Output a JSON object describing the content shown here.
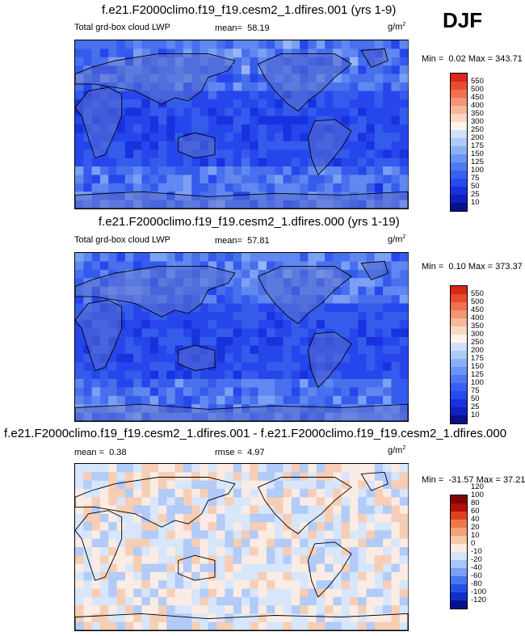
{
  "season": "DJF",
  "colors": {
    "abs_scale": [
      "#08108c",
      "#1020c0",
      "#1830e0",
      "#2848f0",
      "#3860f0",
      "#5078f0",
      "#6c94f4",
      "#8cb0f8",
      "#aecaf8",
      "#d0e0fa",
      "#fff4ec",
      "#fcd8c4",
      "#f8b89c",
      "#f49474",
      "#f07050",
      "#e84c30",
      "#d82818",
      "#b80c08",
      "#8c0404"
    ],
    "diff_scale": [
      "#08108c",
      "#1030c8",
      "#2850e8",
      "#4878f0",
      "#78a0f4",
      "#a8c4f8",
      "#d4e4fa",
      "#fdebdf",
      "#f8c8a8",
      "#f4a078",
      "#f07848",
      "#e04020",
      "#b01008",
      "#800404"
    ],
    "land": "#5a6dd0",
    "diff_bg": "#e8eefc"
  },
  "chart_data": [
    {
      "type": "heatmap",
      "title": "f.e21.F2000climo.f19_f19.cesm2_1.dfires.001 (yrs 1-9)",
      "variable": "Total grd-box cloud LWP",
      "mean_label": "mean=",
      "mean": "58.19",
      "units": "g/m",
      "units_sup": "2",
      "min_label": "Min =",
      "min": "0.02",
      "max_label": "Max =",
      "max": "343.71",
      "levels": [
        "10",
        "25",
        "50",
        "75",
        "100",
        "125",
        "150",
        "175",
        "200",
        "250",
        "300",
        "350",
        "400",
        "450",
        "500",
        "550"
      ]
    },
    {
      "type": "heatmap",
      "title": "f.e21.F2000climo.f19_f19.cesm2_1.dfires.000 (yrs 1-19)",
      "variable": "Total grd-box cloud LWP",
      "mean_label": "mean=",
      "mean": "57.81",
      "units": "g/m",
      "units_sup": "2",
      "min_label": "Min =",
      "min": "0.10",
      "max_label": "Max =",
      "max": "373.37",
      "levels": [
        "10",
        "25",
        "50",
        "75",
        "100",
        "125",
        "150",
        "175",
        "200",
        "250",
        "300",
        "350",
        "400",
        "450",
        "500",
        "550"
      ]
    },
    {
      "type": "heatmap",
      "title": "f.e21.F2000climo.f19_f19.cesm2_1.dfires.001 - f.e21.F2000climo.f19_f19.cesm2_1.dfires.000",
      "mean_label": "mean =",
      "mean": "0.38",
      "rmse_label": "rmse =",
      "rmse": "4.97",
      "units": "g/m",
      "units_sup": "2",
      "min_label": "Min =",
      "min": "-31.57",
      "max_label": "Max =",
      "max": "37.21",
      "levels": [
        "-120",
        "-100",
        "-80",
        "-60",
        "-40",
        "-20",
        "-10",
        "0",
        "10",
        "20",
        "40",
        "60",
        "80",
        "100",
        "120"
      ]
    }
  ]
}
